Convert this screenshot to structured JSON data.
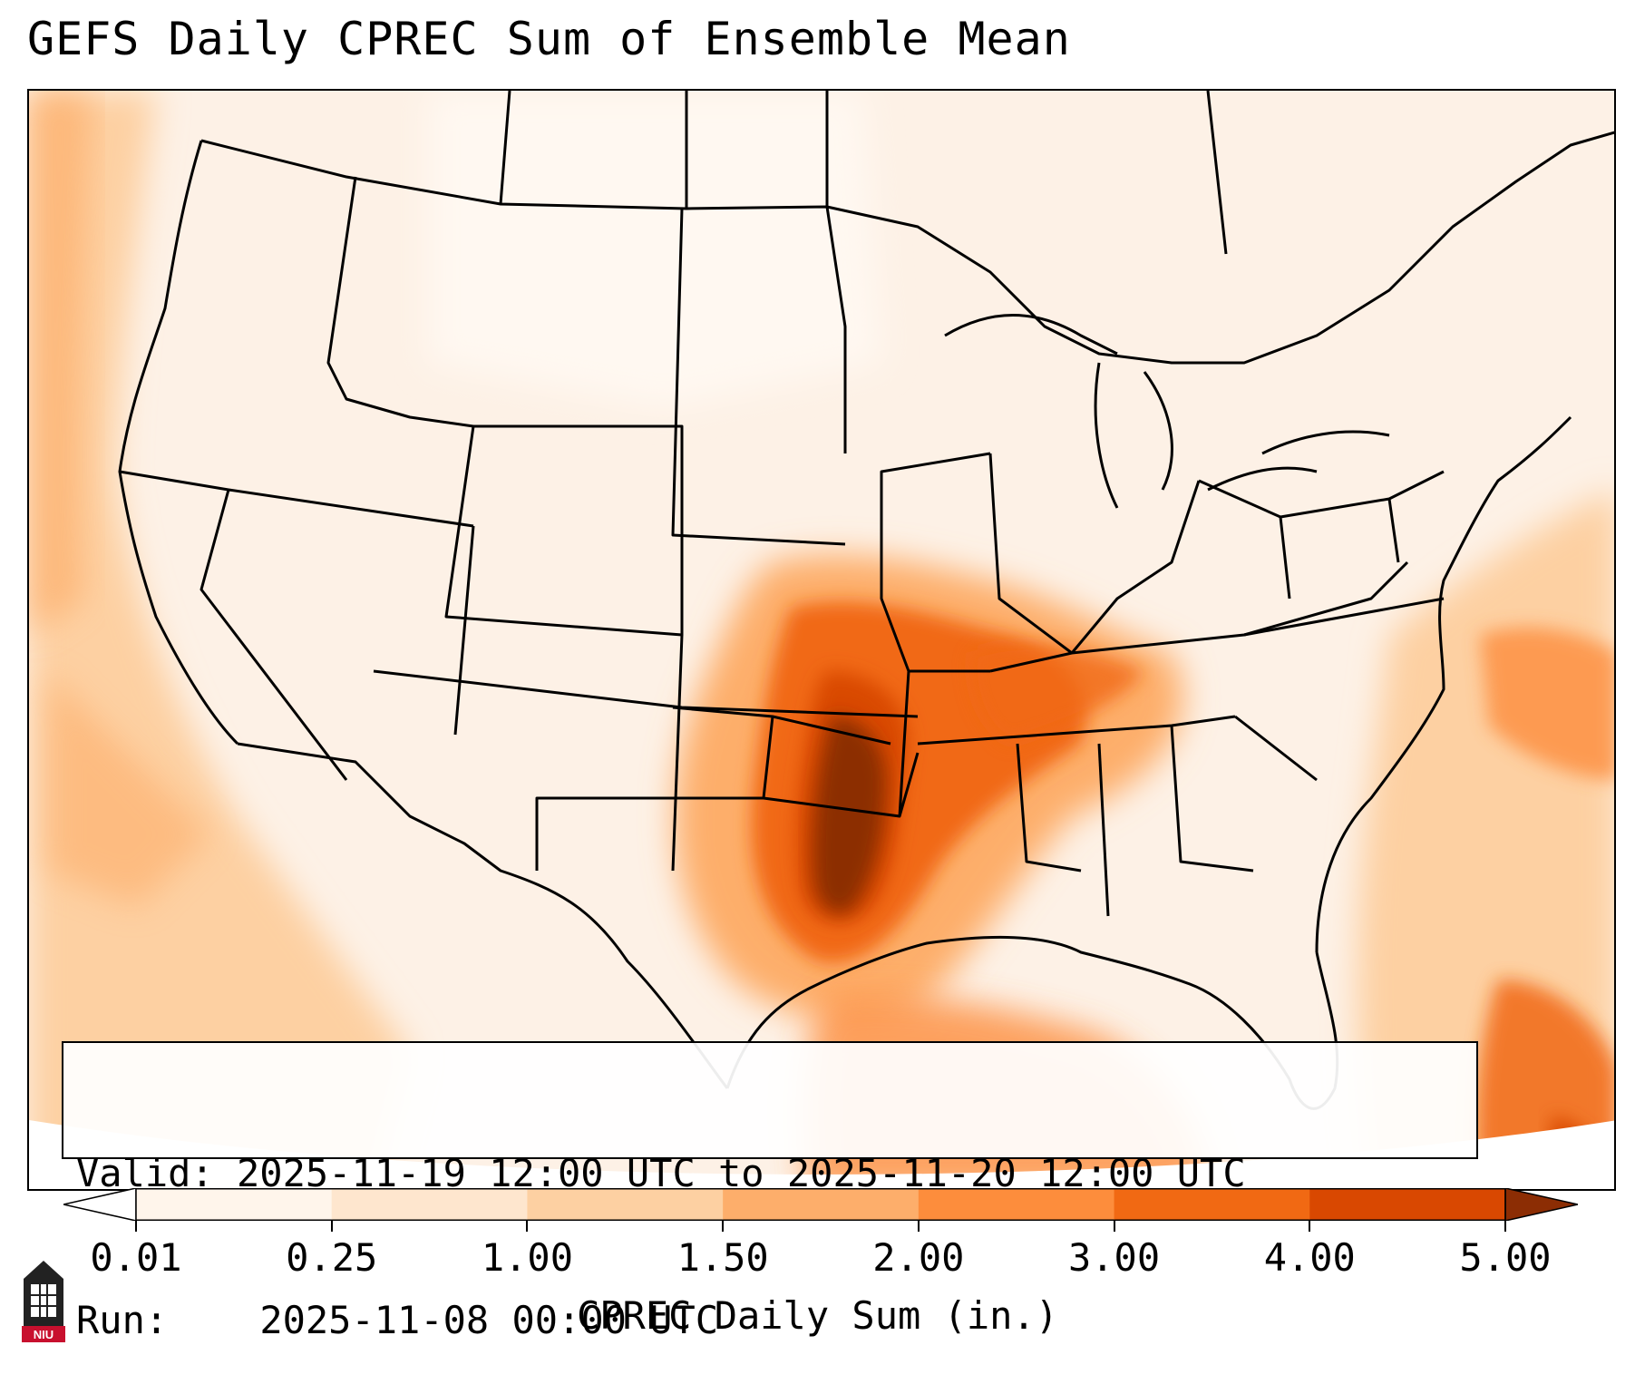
{
  "title": "GEFS Daily CPREC Sum of Ensemble Mean",
  "info": {
    "valid_label": "Valid:",
    "valid_value": "2025-11-19 12:00 UTC to 2025-11-20 12:00 UTC",
    "run_label": "Run:",
    "run_value": "2025-11-08 00:00 UTC"
  },
  "colorbar": {
    "label": "CPREC Daily Sum (in.)",
    "ticks": [
      "0.01",
      "0.25",
      "1.00",
      "1.50",
      "2.00",
      "3.00",
      "4.00",
      "5.00"
    ],
    "colors": [
      "#fff5eb",
      "#fee6ce",
      "#fdd0a2",
      "#fdae6b",
      "#fd8d3c",
      "#f16913",
      "#d94801",
      "#8c2d04"
    ],
    "extend": "both"
  },
  "logo": {
    "text": "NIU",
    "color": "#c8102e"
  },
  "map": {
    "variable": "CPREC",
    "units": "in.",
    "region": "CONUS",
    "max_area": "Oklahoma / north Texas / Arkansas",
    "colors": {
      "land": "#fdf1e6",
      "border": "#000000"
    }
  }
}
